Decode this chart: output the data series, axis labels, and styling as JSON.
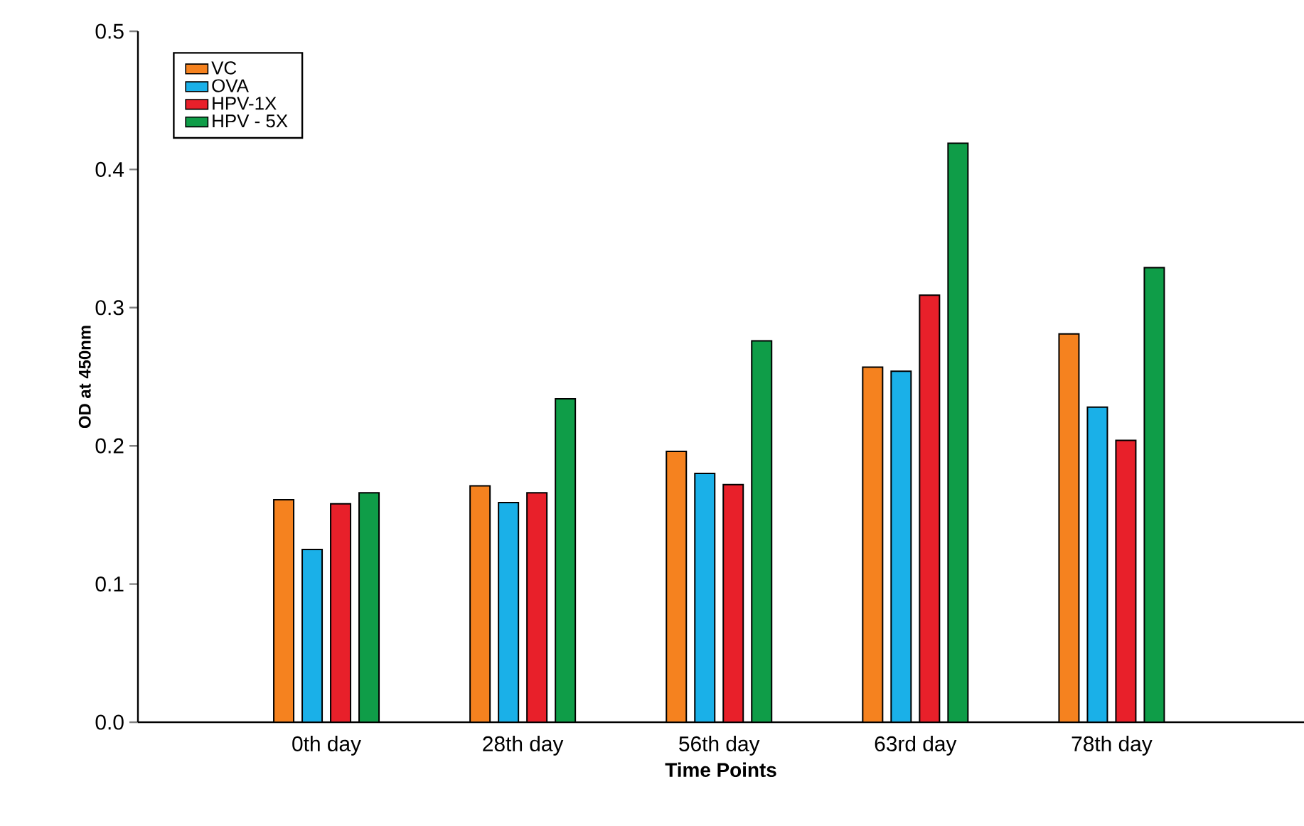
{
  "chart_data": {
    "type": "bar",
    "xlabel": "Time Points",
    "ylabel": "OD at 450nm",
    "categories": [
      "0th day",
      "28th day",
      "56th day",
      "63rd day",
      "78th day"
    ],
    "series": [
      {
        "name": "VC",
        "color": "#f5821f",
        "values": [
          0.161,
          0.171,
          0.196,
          0.257,
          0.281
        ]
      },
      {
        "name": "OVA",
        "color": "#1ab0e8",
        "values": [
          0.125,
          0.159,
          0.18,
          0.254,
          0.228
        ]
      },
      {
        "name": "HPV-1X",
        "color": "#e8202a",
        "values": [
          0.158,
          0.166,
          0.172,
          0.309,
          0.204
        ]
      },
      {
        "name": "HPV - 5X",
        "color": "#0f9d48",
        "values": [
          0.166,
          0.234,
          0.276,
          0.419,
          0.329
        ]
      }
    ],
    "ylim": [
      0.0,
      0.5
    ],
    "yticks": [
      {
        "value": 0.0,
        "label": "0.0"
      },
      0.1,
      0.2,
      0.3,
      0.4,
      0.5
    ],
    "grid": false,
    "legend": "top left"
  }
}
